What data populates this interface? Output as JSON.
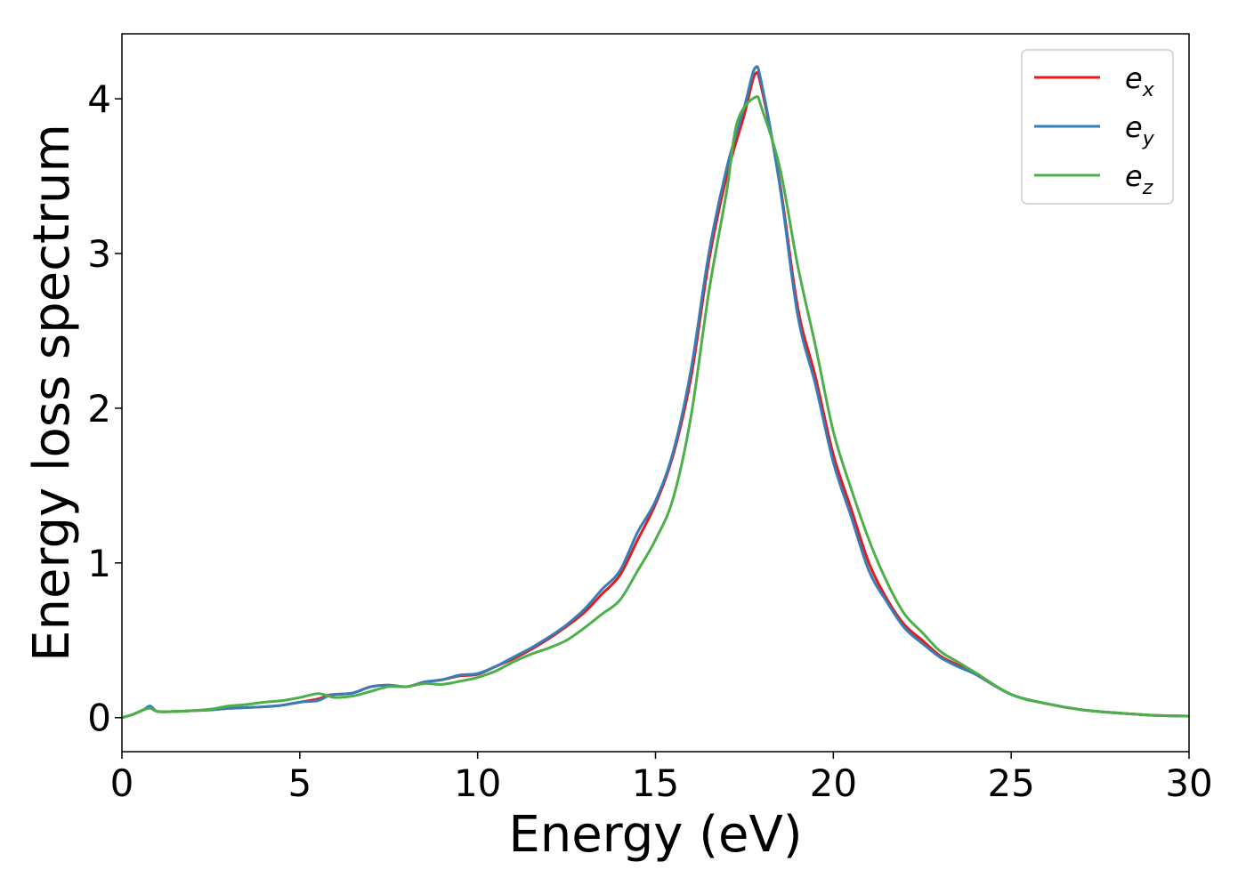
{
  "chart_data": {
    "type": "line",
    "xlabel": "Energy (eV)",
    "ylabel": "Energy loss spectrum",
    "xlim": [
      0,
      30
    ],
    "ylim": [
      -0.22,
      4.42
    ],
    "xticks": [
      0,
      5,
      10,
      15,
      20,
      25,
      30
    ],
    "yticks": [
      0,
      1,
      2,
      3,
      4
    ],
    "grid": false,
    "legend_position": "top-right",
    "series": [
      {
        "name": "e_x",
        "label_base": "e",
        "label_sub": "x",
        "color": "#e41a1c",
        "x": [
          0,
          0.3,
          0.6,
          0.8,
          1.0,
          1.5,
          2.0,
          2.5,
          3.0,
          3.5,
          4.0,
          4.5,
          5.0,
          5.5,
          5.8,
          6.0,
          6.5,
          7.0,
          7.5,
          8.0,
          8.5,
          9.0,
          9.5,
          10.0,
          10.5,
          11.0,
          11.5,
          12.0,
          12.5,
          13.0,
          13.5,
          14.0,
          14.5,
          15.0,
          15.5,
          16.0,
          16.5,
          17.0,
          17.5,
          17.8,
          18.0,
          18.5,
          19.0,
          19.5,
          20.0,
          20.5,
          21.0,
          21.5,
          22.0,
          22.5,
          23.0,
          23.5,
          24.0,
          25.0,
          26.0,
          27.0,
          28.0,
          29.0,
          30.0
        ],
        "y": [
          0.0,
          0.02,
          0.05,
          0.07,
          0.04,
          0.04,
          0.045,
          0.05,
          0.06,
          0.065,
          0.07,
          0.08,
          0.1,
          0.12,
          0.145,
          0.15,
          0.16,
          0.2,
          0.21,
          0.2,
          0.23,
          0.245,
          0.27,
          0.28,
          0.33,
          0.38,
          0.44,
          0.51,
          0.59,
          0.68,
          0.8,
          0.92,
          1.15,
          1.38,
          1.7,
          2.2,
          2.95,
          3.5,
          3.9,
          4.16,
          4.05,
          3.45,
          2.65,
          2.2,
          1.7,
          1.35,
          1.0,
          0.77,
          0.6,
          0.5,
          0.4,
          0.34,
          0.28,
          0.15,
          0.09,
          0.05,
          0.03,
          0.015,
          0.01
        ]
      },
      {
        "name": "e_y",
        "label_base": "e",
        "label_sub": "y",
        "color": "#377eb8",
        "x": [
          0,
          0.3,
          0.6,
          0.8,
          1.0,
          1.5,
          2.0,
          2.5,
          3.0,
          3.5,
          4.0,
          4.5,
          5.0,
          5.5,
          5.8,
          6.0,
          6.5,
          7.0,
          7.5,
          8.0,
          8.5,
          9.0,
          9.5,
          10.0,
          10.5,
          11.0,
          11.5,
          12.0,
          12.5,
          13.0,
          13.5,
          14.0,
          14.5,
          15.0,
          15.5,
          16.0,
          16.5,
          17.0,
          17.5,
          17.8,
          18.0,
          18.5,
          19.0,
          19.5,
          20.0,
          20.5,
          21.0,
          21.5,
          22.0,
          22.5,
          23.0,
          23.5,
          24.0,
          25.0,
          26.0,
          27.0,
          28.0,
          29.0,
          30.0
        ],
        "y": [
          0.0,
          0.02,
          0.05,
          0.075,
          0.04,
          0.04,
          0.045,
          0.05,
          0.06,
          0.065,
          0.07,
          0.08,
          0.1,
          0.11,
          0.14,
          0.15,
          0.16,
          0.2,
          0.21,
          0.2,
          0.23,
          0.245,
          0.275,
          0.285,
          0.33,
          0.39,
          0.45,
          0.52,
          0.6,
          0.7,
          0.83,
          0.95,
          1.2,
          1.4,
          1.72,
          2.25,
          3.0,
          3.55,
          3.95,
          4.2,
          4.08,
          3.43,
          2.6,
          2.15,
          1.65,
          1.3,
          0.95,
          0.75,
          0.58,
          0.48,
          0.39,
          0.33,
          0.28,
          0.15,
          0.09,
          0.05,
          0.03,
          0.015,
          0.01
        ]
      },
      {
        "name": "e_z",
        "label_base": "e",
        "label_sub": "z",
        "color": "#4daf4a",
        "x": [
          0,
          0.3,
          0.6,
          0.8,
          1.0,
          1.5,
          2.0,
          2.5,
          3.0,
          3.5,
          4.0,
          4.5,
          5.0,
          5.5,
          5.8,
          6.0,
          6.5,
          7.0,
          7.5,
          8.0,
          8.5,
          9.0,
          9.5,
          10.0,
          10.5,
          11.0,
          11.5,
          12.0,
          12.5,
          13.0,
          13.5,
          14.0,
          14.5,
          15.0,
          15.5,
          16.0,
          16.5,
          17.0,
          17.3,
          17.8,
          18.0,
          18.5,
          19.0,
          19.5,
          20.0,
          20.5,
          21.0,
          21.5,
          22.0,
          22.5,
          23.0,
          23.5,
          24.0,
          25.0,
          26.0,
          27.0,
          28.0,
          29.0,
          30.0
        ],
        "y": [
          0.0,
          0.02,
          0.05,
          0.06,
          0.04,
          0.04,
          0.045,
          0.055,
          0.075,
          0.085,
          0.1,
          0.11,
          0.13,
          0.155,
          0.14,
          0.13,
          0.14,
          0.17,
          0.2,
          0.2,
          0.22,
          0.215,
          0.235,
          0.26,
          0.3,
          0.36,
          0.41,
          0.45,
          0.5,
          0.58,
          0.67,
          0.76,
          0.95,
          1.15,
          1.42,
          1.95,
          2.75,
          3.4,
          3.85,
          4.01,
          3.93,
          3.55,
          2.92,
          2.4,
          1.85,
          1.48,
          1.15,
          0.88,
          0.67,
          0.55,
          0.43,
          0.36,
          0.29,
          0.15,
          0.09,
          0.05,
          0.03,
          0.015,
          0.01
        ]
      }
    ]
  }
}
